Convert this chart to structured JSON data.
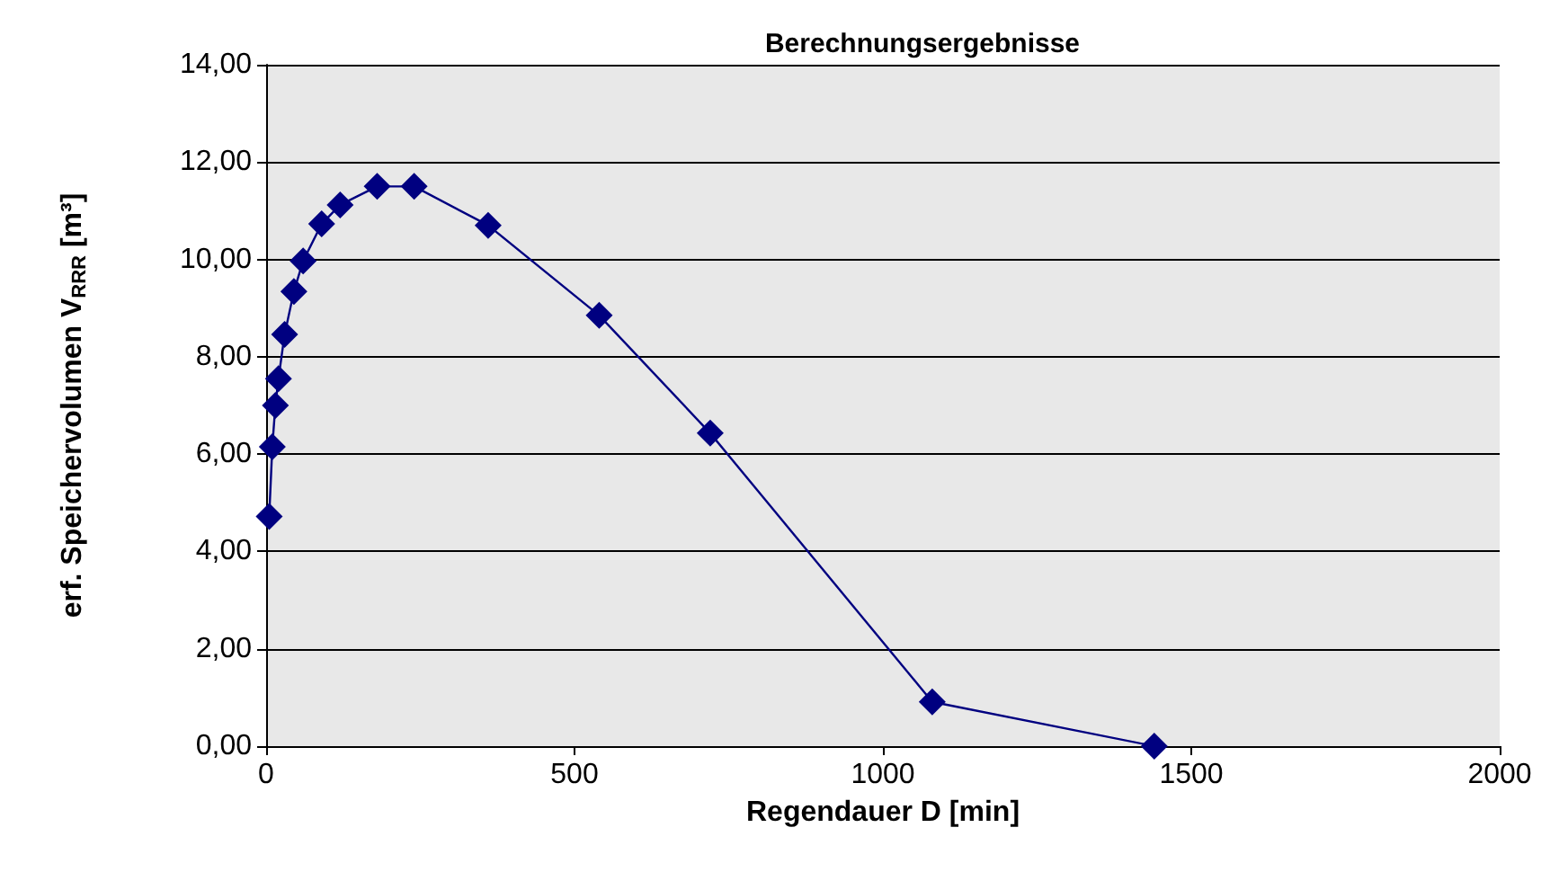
{
  "chart_data": {
    "type": "line",
    "title": "Berechnungsergebnisse",
    "xlabel": "Regendauer D [min]",
    "ylabel": "erf. Speichervolumen V$_{RRR}$ [m³]",
    "x": [
      5,
      10,
      15,
      20,
      30,
      45,
      60,
      90,
      120,
      180,
      240,
      360,
      540,
      720,
      1080,
      1440
    ],
    "series": [
      {
        "color": "#000080",
        "values": [
          4.72,
          6.15,
          7.0,
          7.55,
          8.46,
          9.34,
          9.97,
          10.73,
          11.12,
          11.5,
          11.5,
          10.7,
          8.85,
          6.43,
          0.91,
          0.0
        ]
      }
    ],
    "xlim": [
      0,
      2000
    ],
    "xticks": [
      0,
      500,
      1000,
      1500,
      2000
    ],
    "ylim": [
      0,
      14
    ],
    "yticks": [
      {
        "value": 0,
        "label": "0,00"
      },
      {
        "value": 2,
        "label": "2,00"
      },
      {
        "value": 4,
        "label": "4,00"
      },
      {
        "value": 6,
        "label": "6,00"
      },
      {
        "value": 8,
        "label": "8,00"
      },
      {
        "value": 10,
        "label": "10,00"
      },
      {
        "value": 12,
        "label": "12,00"
      },
      {
        "value": 14,
        "label": "14,00"
      }
    ],
    "grid": "y",
    "marker": "diamond",
    "line_style": "solid"
  }
}
